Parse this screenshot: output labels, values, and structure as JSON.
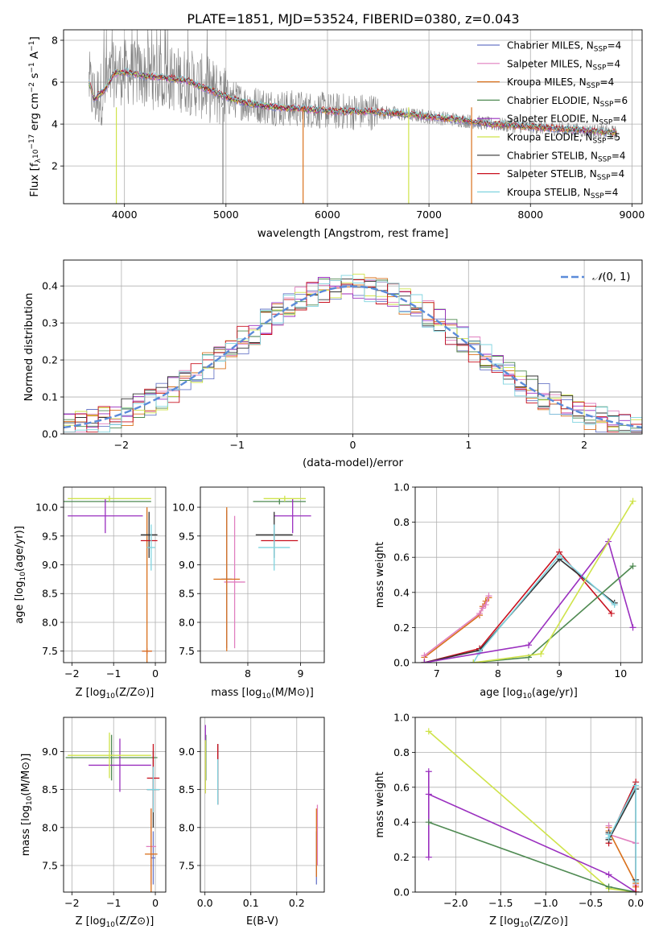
{
  "figure": {
    "title": "PLATE=1851, MJD=53524, FIBERID=0380, z=0.043"
  },
  "series_styles": [
    {
      "name": "Chabrier MILES, N",
      "n": "4",
      "color": "#6a78c7"
    },
    {
      "name": "Salpeter MILES, N",
      "n": "4",
      "color": "#e07fbf"
    },
    {
      "name": "Kroupa MILES, N",
      "n": "4",
      "color": "#d9701c"
    },
    {
      "name": "Chabrier ELODIE, N",
      "n": "6",
      "color": "#4f8a52"
    },
    {
      "name": "Salpeter ELODIE, N",
      "n": "4",
      "color": "#9a2fbf"
    },
    {
      "name": "Kroupa ELODIE, N",
      "n": "5",
      "color": "#cfe34a"
    },
    {
      "name": "Chabrier STELIB, N",
      "n": "4",
      "color": "#333333"
    },
    {
      "name": "Salpeter STELIB, N",
      "n": "4",
      "color": "#c8101e"
    },
    {
      "name": "Kroupa STELIB, N",
      "n": "4",
      "color": "#7fd3df"
    }
  ],
  "chart_data": [
    {
      "id": "spectrum",
      "type": "line",
      "xlabel": "wavelength [Angstrom, rest frame]",
      "ylabel": "Flux [f",
      "ylabel_rest": "10",
      "ylabel_units": "erg cm",
      "xlim": [
        3400,
        9100
      ],
      "ylim": [
        0.2,
        8.5
      ],
      "xticks": [
        4000,
        5000,
        6000,
        7000,
        8000,
        9000
      ],
      "yticks": [
        2,
        4,
        6,
        8
      ],
      "ssp_subscript": "SSP",
      "data_color": "#808080",
      "model_anchor": {
        "x": [
          3650,
          3700,
          3800,
          3900,
          4000,
          4200,
          4400,
          4600,
          4800,
          5000,
          5200,
          5500,
          5800,
          6100,
          6400,
          6700,
          7000,
          7300,
          7600,
          7900,
          8200,
          8500,
          8800
        ],
        "y": [
          6.0,
          5.2,
          5.6,
          6.4,
          6.5,
          6.3,
          6.2,
          6.1,
          5.7,
          5.3,
          5.0,
          4.8,
          4.7,
          4.6,
          4.6,
          4.5,
          4.35,
          4.2,
          4.0,
          3.9,
          3.8,
          3.7,
          3.6
        ]
      }
    },
    {
      "id": "residuals",
      "type": "line",
      "xlabel": "(data-model)/error",
      "ylabel": "Normed distribution",
      "xlim": [
        -2.5,
        2.5
      ],
      "ylim": [
        0,
        0.47
      ],
      "xticks": [
        -2,
        -1,
        0,
        1,
        2
      ],
      "yticks": [
        0.0,
        0.1,
        0.2,
        0.3,
        0.4
      ],
      "legend_label": "(0, 1)",
      "gaussian_color": "#5b8bd9",
      "bin_width": 0.1
    },
    {
      "id": "age_vs_Z",
      "type": "scatter",
      "xlabel": "Z [log",
      "ylabel": "age  [log",
      "xlim": [
        -2.2,
        0.25
      ],
      "ylim": [
        7.3,
        10.35
      ],
      "xticks": [
        -2,
        -1,
        0
      ],
      "yticks": [
        7.5,
        8.0,
        8.5,
        9.0,
        9.5,
        10.0
      ],
      "points": [
        {
          "s": 0,
          "x": -0.2,
          "y": 7.5,
          "xerr": 0.1,
          "yerr": 0.04
        },
        {
          "s": 1,
          "x": -0.2,
          "y": 7.5,
          "xerr": 0.12,
          "yerr": 0.05
        },
        {
          "s": 2,
          "x": -0.2,
          "y": 7.5,
          "xerr": 0.12,
          "yerr": 2.5
        },
        {
          "s": 3,
          "x": -2.1,
          "y": 10.1,
          "xerr": 2.0,
          "yerr": 0.0
        },
        {
          "s": 4,
          "x": -1.2,
          "y": 9.85,
          "xerr": 0.9,
          "yerr": 0.3
        },
        {
          "s": 5,
          "x": -1.1,
          "y": 10.15,
          "xerr": 1.0,
          "yerr": 0.05
        },
        {
          "s": 6,
          "x": -0.15,
          "y": 9.52,
          "xerr": 0.2,
          "yerr": 0.4
        },
        {
          "s": 7,
          "x": -0.15,
          "y": 9.42,
          "xerr": 0.2,
          "yerr": 0.0
        },
        {
          "s": 8,
          "x": -0.1,
          "y": 9.3,
          "xerr": 0.1,
          "yerr": 0.4
        }
      ]
    },
    {
      "id": "age_vs_mass",
      "type": "scatter",
      "xlabel": "mass [log",
      "ylabel": "",
      "xlim": [
        7.1,
        9.45
      ],
      "ylim": [
        7.3,
        10.35
      ],
      "xticks": [
        8,
        9
      ],
      "yticks": [
        7.5,
        8.0,
        8.5,
        9.0,
        9.5,
        10.0
      ],
      "points": [
        {
          "s": 0,
          "x": 7.6,
          "y": 8.75,
          "xerr": 0.1,
          "yerr": 1.2
        },
        {
          "s": 1,
          "x": 7.75,
          "y": 8.7,
          "xerr": 0.2,
          "yerr": 1.15
        },
        {
          "s": 2,
          "x": 7.6,
          "y": 8.75,
          "xerr": 0.25,
          "yerr": 1.25
        },
        {
          "s": 3,
          "x": 8.6,
          "y": 10.1,
          "xerr": 0.5,
          "yerr": 0.05
        },
        {
          "s": 4,
          "x": 8.85,
          "y": 9.85,
          "xerr": 0.35,
          "yerr": 0.3
        },
        {
          "s": 5,
          "x": 8.7,
          "y": 10.15,
          "xerr": 0.4,
          "yerr": 0.05
        },
        {
          "s": 6,
          "x": 8.5,
          "y": 9.52,
          "xerr": 0.35,
          "yerr": 0.4
        },
        {
          "s": 7,
          "x": 8.6,
          "y": 9.42,
          "xerr": 0.35,
          "yerr": 0.0
        },
        {
          "s": 8,
          "x": 8.5,
          "y": 9.3,
          "xerr": 0.3,
          "yerr": 0.4
        }
      ]
    },
    {
      "id": "weight_vs_age",
      "type": "line",
      "xlabel": "age  [log",
      "ylabel": "mass weight",
      "xlim": [
        6.65,
        10.35
      ],
      "ylim": [
        0,
        1.0
      ],
      "xticks": [
        7,
        8,
        9,
        10
      ],
      "yticks": [
        0.0,
        0.2,
        0.4,
        0.6,
        0.8,
        1.0
      ],
      "series": [
        {
          "s": 2,
          "x": [
            6.8,
            7.7,
            7.75,
            7.8,
            7.85
          ],
          "y": [
            0.03,
            0.27,
            0.32,
            0.35,
            0.37
          ]
        },
        {
          "s": 1,
          "x": [
            6.8,
            7.7,
            7.75,
            7.8,
            7.85
          ],
          "y": [
            0.04,
            0.28,
            0.31,
            0.33,
            0.38
          ]
        },
        {
          "s": 7,
          "x": [
            6.8,
            7.7,
            9.0,
            9.85
          ],
          "y": [
            0.0,
            0.08,
            0.63,
            0.28
          ]
        },
        {
          "s": 6,
          "x": [
            6.8,
            7.7,
            9.0,
            9.9
          ],
          "y": [
            0.0,
            0.07,
            0.59,
            0.34
          ]
        },
        {
          "s": 8,
          "x": [
            7.6,
            7.7,
            9.0,
            9.9
          ],
          "y": [
            0.0,
            0.06,
            0.61,
            0.33
          ]
        },
        {
          "s": 4,
          "x": [
            6.8,
            8.5,
            9.8,
            10.2
          ],
          "y": [
            0.0,
            0.1,
            0.69,
            0.2
          ]
        },
        {
          "s": 3,
          "x": [
            7.6,
            8.5,
            10.2
          ],
          "y": [
            0.0,
            0.03,
            0.55
          ]
        },
        {
          "s": 5,
          "x": [
            7.6,
            8.7,
            10.2
          ],
          "y": [
            0.0,
            0.05,
            0.92
          ]
        }
      ]
    },
    {
      "id": "mass_vs_Z",
      "type": "scatter",
      "xlabel": "Z [log",
      "ylabel": "mass [log",
      "xlim": [
        -2.2,
        0.25
      ],
      "ylim": [
        7.15,
        9.45
      ],
      "xticks": [
        -2,
        -1,
        0
      ],
      "yticks": [
        7.5,
        8.0,
        8.5,
        9.0
      ],
      "points": [
        {
          "s": 0,
          "x": -0.05,
          "y": 7.6,
          "xerr": 0.05,
          "yerr": 0.35
        },
        {
          "s": 1,
          "x": -0.1,
          "y": 7.75,
          "xerr": 0.12,
          "yerr": 0.5
        },
        {
          "s": 2,
          "x": -0.1,
          "y": 7.65,
          "xerr": 0.15,
          "yerr": 0.6
        },
        {
          "s": 3,
          "x": -1.05,
          "y": 8.92,
          "xerr": 1.1,
          "yerr": 0.3
        },
        {
          "s": 4,
          "x": -0.85,
          "y": 8.82,
          "xerr": 0.75,
          "yerr": 0.35
        },
        {
          "s": 5,
          "x": -1.1,
          "y": 8.95,
          "xerr": 1.0,
          "yerr": 0.3
        },
        {
          "s": 6,
          "x": -0.05,
          "y": 8.5,
          "xerr": 0.15,
          "yerr": 0.5
        },
        {
          "s": 7,
          "x": -0.05,
          "y": 8.65,
          "xerr": 0.15,
          "yerr": 0.45
        },
        {
          "s": 8,
          "x": -0.05,
          "y": 8.5,
          "xerr": 0.15,
          "yerr": 0.3
        }
      ]
    },
    {
      "id": "mass_vs_ebv",
      "type": "scatter",
      "xlabel": "E(B-V)",
      "ylabel": "",
      "xlim": [
        -0.01,
        0.26
      ],
      "ylim": [
        7.15,
        9.45
      ],
      "xticks": [
        0.0,
        0.1,
        0.2
      ],
      "yticks": [
        7.5,
        8.0,
        8.5,
        9.0
      ],
      "points": [
        {
          "s": 0,
          "x": 0.243,
          "y": 7.6,
          "yerr": 0.35
        },
        {
          "s": 1,
          "x": 0.245,
          "y": 7.9,
          "yerr": 0.4
        },
        {
          "s": 2,
          "x": 0.243,
          "y": 7.8,
          "yerr": 0.45
        },
        {
          "s": 3,
          "x": 0.002,
          "y": 8.92,
          "yerr": 0.3
        },
        {
          "s": 4,
          "x": 0.001,
          "y": 8.9,
          "yerr": 0.45
        },
        {
          "s": 5,
          "x": 0.001,
          "y": 8.8,
          "yerr": 0.35
        },
        {
          "s": 6,
          "x": 0.028,
          "y": 8.7,
          "yerr": 0.4
        },
        {
          "s": 7,
          "x": 0.028,
          "y": 8.7,
          "yerr": 0.4
        },
        {
          "s": 8,
          "x": 0.028,
          "y": 8.6,
          "yerr": 0.3
        }
      ]
    },
    {
      "id": "weight_vs_Z",
      "type": "line",
      "xlabel": "Z [log",
      "ylabel": "mass weight",
      "xlim": [
        -2.45,
        0.07
      ],
      "ylim": [
        0,
        1.0
      ],
      "xticks": [
        -2.0,
        -1.5,
        -1.0,
        -0.5,
        0.0
      ],
      "yticks": [
        0.0,
        0.2,
        0.4,
        0.6,
        0.8,
        1.0
      ],
      "series": [
        {
          "s": 5,
          "x": [
            -2.3,
            -0.3,
            0.0
          ],
          "y": [
            0.92,
            0.02,
            0.0
          ]
        },
        {
          "s": 4,
          "x": [
            -2.3,
            -2.3,
            -2.3,
            -0.3,
            0.0
          ],
          "y": [
            0.2,
            0.69,
            0.56,
            0.1,
            0.0
          ]
        },
        {
          "s": 3,
          "x": [
            -2.3,
            -0.3,
            0.0
          ],
          "y": [
            0.4,
            0.03,
            0.0
          ]
        },
        {
          "s": 2,
          "x": [
            -0.3,
            -0.3,
            0.0,
            0.0
          ],
          "y": [
            0.37,
            0.35,
            0.05,
            0.03
          ]
        },
        {
          "s": 1,
          "x": [
            -0.3,
            -0.3,
            0.0,
            0.0
          ],
          "y": [
            0.38,
            0.33,
            0.28,
            0.04
          ]
        },
        {
          "s": 7,
          "x": [
            -0.3,
            -0.3,
            0.0,
            0.0
          ],
          "y": [
            0.28,
            0.3,
            0.63,
            0.0
          ]
        },
        {
          "s": 6,
          "x": [
            -0.3,
            -0.3,
            0.0,
            0.0
          ],
          "y": [
            0.34,
            0.3,
            0.59,
            0.07
          ]
        },
        {
          "s": 8,
          "x": [
            -0.3,
            -0.3,
            0.0,
            0.0
          ],
          "y": [
            0.33,
            0.31,
            0.61,
            0.06
          ]
        }
      ]
    }
  ]
}
